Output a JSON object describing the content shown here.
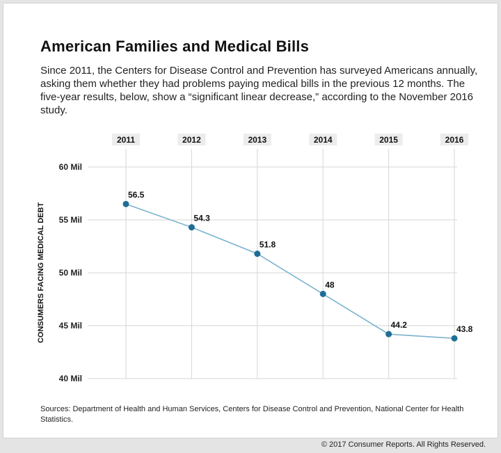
{
  "title": "American Families and Medical Bills",
  "subtitle": "Since 2011, the Centers for Disease Control and Prevention has surveyed Americans annually, asking them whether they had problems paying medical bills in the previous 12 months. The five-year results, below, show a “significant linear decrease,” according to the November 2016 study.",
  "sources": "Sources:  Department of Health and Human Services, Centers for Disease Control and Prevention, National Center for Health Statistics.",
  "copyright": "© 2017 Consumer Reports. All Rights Reserved.",
  "colors": {
    "line": "#7ab3cf",
    "point": "#1f6d96",
    "grid": "#d6d6d6",
    "year_box": "#ececec"
  },
  "chart_data": {
    "type": "line",
    "title": "American Families and Medical Bills",
    "ylabel": "CONSUMERS FACING MEDICAL DEBT",
    "xlabel": "",
    "x": [
      "2011",
      "2012",
      "2013",
      "2014",
      "2015",
      "2016"
    ],
    "x_axis_position": "top",
    "values": [
      56.5,
      54.3,
      51.8,
      48,
      44.2,
      43.8
    ],
    "data_labels": [
      "56.5",
      "54.3",
      "51.8",
      "48",
      "44.2",
      "43.8"
    ],
    "ylim": [
      40,
      60
    ],
    "y_ticks": [
      60,
      55,
      50,
      45,
      40
    ],
    "y_tick_labels": [
      "60 Mil",
      "55 Mil",
      "50 Mil",
      "45 Mil",
      "40 Mil"
    ],
    "grid": true
  }
}
